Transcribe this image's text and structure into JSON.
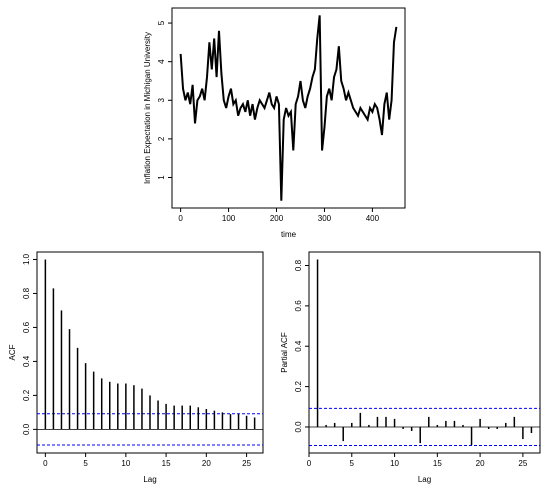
{
  "chart_data": [
    {
      "type": "line",
      "xlabel": "time",
      "ylabel": "Inflation Expectation in Michigan University",
      "color": "#000000",
      "x": [
        0,
        5,
        10,
        15,
        20,
        25,
        30,
        35,
        40,
        45,
        50,
        55,
        60,
        65,
        70,
        75,
        80,
        85,
        90,
        95,
        100,
        105,
        110,
        115,
        120,
        125,
        130,
        135,
        140,
        145,
        150,
        155,
        160,
        165,
        170,
        175,
        180,
        185,
        190,
        195,
        200,
        205,
        210,
        215,
        220,
        225,
        230,
        235,
        240,
        245,
        250,
        255,
        260,
        265,
        270,
        275,
        280,
        285,
        290,
        295,
        300,
        305,
        310,
        315,
        320,
        325,
        330,
        335,
        340,
        345,
        350,
        355,
        360,
        365,
        370,
        375,
        380,
        385,
        390,
        395,
        400,
        405,
        410,
        415,
        420,
        425,
        430,
        435,
        440,
        445,
        450
      ],
      "values": [
        4.2,
        3.3,
        3.0,
        3.2,
        2.9,
        3.4,
        2.4,
        3.0,
        3.1,
        3.3,
        3.0,
        3.6,
        4.5,
        3.8,
        4.6,
        3.6,
        4.8,
        3.7,
        3.0,
        2.8,
        3.1,
        3.3,
        2.9,
        3.0,
        2.6,
        2.8,
        2.9,
        2.7,
        3.0,
        2.6,
        2.9,
        2.5,
        2.8,
        3.0,
        2.9,
        2.8,
        3.0,
        3.2,
        2.9,
        2.8,
        3.1,
        2.9,
        0.4,
        2.5,
        2.8,
        2.6,
        2.7,
        1.7,
        2.9,
        3.1,
        3.5,
        3.0,
        2.8,
        3.1,
        3.3,
        3.6,
        3.8,
        4.6,
        5.2,
        1.7,
        2.3,
        3.1,
        3.3,
        3.0,
        3.6,
        3.8,
        4.4,
        3.5,
        3.3,
        3.0,
        3.2,
        3.0,
        2.8,
        2.7,
        2.6,
        2.8,
        2.7,
        2.6,
        2.5,
        2.8,
        2.7,
        2.9,
        2.8,
        2.5,
        2.1,
        2.9,
        3.2,
        2.5,
        3.0,
        4.5,
        4.9
      ],
      "xlim": [
        -18,
        468
      ],
      "ylim": [
        0.21,
        5.39
      ],
      "xticks": [
        0,
        100,
        200,
        300,
        400
      ],
      "yticks": [
        1,
        2,
        3,
        4,
        5
      ]
    },
    {
      "type": "acf",
      "xlabel": "Lag",
      "ylabel": "ACF",
      "color": "#000000",
      "ci_color": "#0000ff",
      "ci": 0.092,
      "x": [
        0,
        1,
        2,
        3,
        4,
        5,
        6,
        7,
        8,
        9,
        10,
        11,
        12,
        13,
        14,
        15,
        16,
        17,
        18,
        19,
        20,
        21,
        22,
        23,
        24,
        25,
        26
      ],
      "values": [
        1.0,
        0.83,
        0.7,
        0.59,
        0.48,
        0.39,
        0.34,
        0.3,
        0.28,
        0.27,
        0.27,
        0.26,
        0.24,
        0.2,
        0.17,
        0.15,
        0.14,
        0.14,
        0.14,
        0.13,
        0.12,
        0.11,
        0.1,
        0.09,
        0.09,
        0.08,
        0.07
      ],
      "xlim": [
        -1.04,
        27.04
      ],
      "ylim": [
        -0.139,
        1.044
      ],
      "xticks": [
        0,
        5,
        10,
        15,
        20,
        25
      ],
      "yticks": [
        {
          "value": 0,
          "label": "0.0"
        },
        0.2,
        0.4,
        0.6,
        0.8,
        {
          "value": 1,
          "label": "1.0"
        }
      ]
    },
    {
      "type": "acf",
      "xlabel": "Lag",
      "ylabel": "Partial ACF",
      "color": "#000000",
      "ci_color": "#0000ff",
      "ci": 0.092,
      "x": [
        1,
        2,
        3,
        4,
        5,
        6,
        7,
        8,
        9,
        10,
        11,
        12,
        13,
        14,
        15,
        16,
        17,
        18,
        19,
        20,
        21,
        22,
        23,
        24,
        25,
        26
      ],
      "values": [
        0.83,
        0.01,
        0.02,
        -0.07,
        0.02,
        0.07,
        0.01,
        0.05,
        0.05,
        0.04,
        -0.01,
        -0.02,
        -0.08,
        0.05,
        0.01,
        0.03,
        0.03,
        0.01,
        -0.09,
        0.04,
        -0.01,
        -0.01,
        0.02,
        0.05,
        -0.06,
        -0.03
      ],
      "xlim": [
        0,
        27
      ],
      "ylim": [
        -0.129,
        0.867
      ],
      "xticks": [
        0,
        5,
        10,
        15,
        20,
        25
      ],
      "yticks": [
        {
          "value": 0,
          "label": "0.0"
        },
        0.2,
        0.4,
        0.6,
        0.8
      ]
    }
  ]
}
